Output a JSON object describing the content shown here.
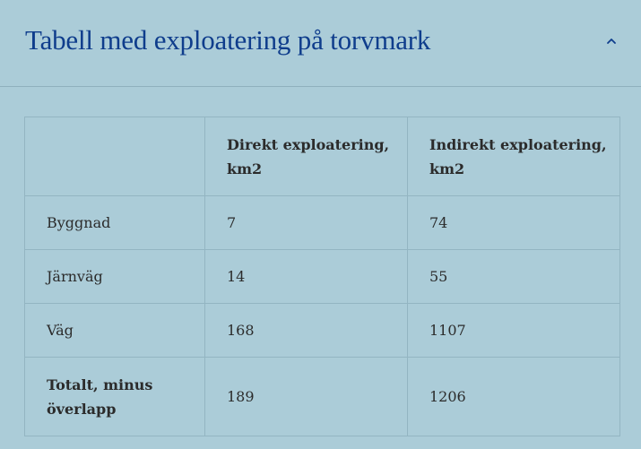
{
  "accordion": {
    "title": "Tabell med exploatering på torvmark",
    "expanded": true,
    "icon": "chevron-up-icon"
  },
  "table": {
    "headers": [
      "",
      "Direkt exploatering, km2",
      "Indirekt exploatering, km2"
    ],
    "rows": [
      {
        "label": "Byggnad",
        "direct": "7",
        "indirect": "74"
      },
      {
        "label": "Järnväg",
        "direct": "14",
        "indirect": "55"
      },
      {
        "label": "Väg",
        "direct": "168",
        "indirect": "1107"
      },
      {
        "label": "Totalt, minus överlapp",
        "direct": "189",
        "indirect": "1206"
      }
    ]
  },
  "colors": {
    "background": "#abccd8",
    "title": "#0f3d8c",
    "border": "#93b5c2",
    "text": "#2b2b2b"
  }
}
